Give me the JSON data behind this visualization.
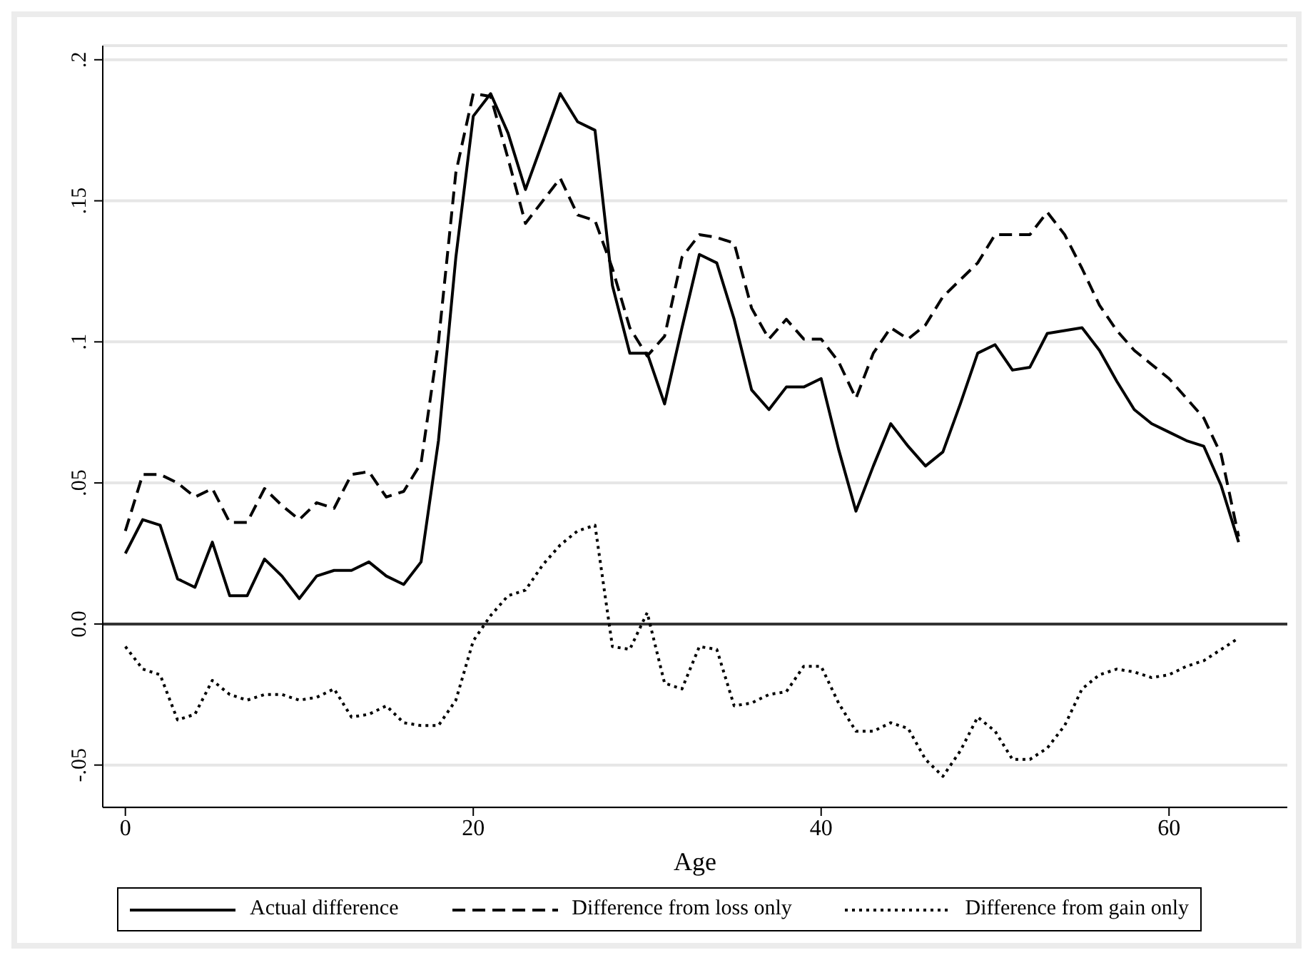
{
  "chart_data": {
    "type": "line",
    "xlabel": "Age",
    "x": [
      0,
      1,
      2,
      3,
      4,
      5,
      6,
      7,
      8,
      9,
      10,
      11,
      12,
      13,
      14,
      15,
      16,
      17,
      18,
      19,
      20,
      21,
      22,
      23,
      24,
      25,
      26,
      27,
      28,
      29,
      30,
      31,
      32,
      33,
      34,
      35,
      36,
      37,
      38,
      39,
      40,
      41,
      42,
      43,
      44,
      45,
      46,
      47,
      48,
      49,
      50,
      51,
      52,
      53,
      54,
      55,
      56,
      57,
      58,
      59,
      60,
      61,
      62,
      63,
      64
    ],
    "series": [
      {
        "name": "Actual difference",
        "color": "#000000",
        "line_style": "solid",
        "values": [
          0.025,
          0.037,
          0.035,
          0.016,
          0.013,
          0.029,
          0.01,
          0.01,
          0.023,
          0.017,
          0.009,
          0.017,
          0.019,
          0.019,
          0.022,
          0.017,
          0.014,
          0.022,
          0.065,
          0.13,
          0.18,
          0.188,
          0.174,
          0.154,
          0.171,
          0.188,
          0.178,
          0.175,
          0.12,
          0.096,
          0.096,
          0.078,
          0.105,
          0.131,
          0.128,
          0.108,
          0.083,
          0.076,
          0.084,
          0.084,
          0.087,
          0.062,
          0.04,
          0.056,
          0.071,
          0.063,
          0.056,
          0.061,
          0.078,
          0.096,
          0.099,
          0.09,
          0.091,
          0.103,
          0.104,
          0.105,
          0.097,
          0.086,
          0.076,
          0.071,
          0.068,
          0.065,
          0.063,
          0.049,
          0.029
        ]
      },
      {
        "name": "Difference from loss only",
        "color": "#000000",
        "line_style": "dashed",
        "values": [
          0.033,
          0.053,
          0.053,
          0.05,
          0.045,
          0.048,
          0.036,
          0.036,
          0.048,
          0.042,
          0.037,
          0.043,
          0.041,
          0.053,
          0.054,
          0.045,
          0.047,
          0.057,
          0.1,
          0.16,
          0.188,
          0.187,
          0.165,
          0.142,
          0.15,
          0.158,
          0.145,
          0.143,
          0.126,
          0.105,
          0.095,
          0.102,
          0.13,
          0.138,
          0.137,
          0.135,
          0.112,
          0.101,
          0.108,
          0.101,
          0.101,
          0.093,
          0.08,
          0.096,
          0.105,
          0.101,
          0.106,
          0.116,
          0.122,
          0.128,
          0.138,
          0.138,
          0.138,
          0.146,
          0.138,
          0.126,
          0.113,
          0.104,
          0.097,
          0.092,
          0.087,
          0.08,
          0.073,
          0.06,
          0.031
        ]
      },
      {
        "name": "Difference from gain only",
        "color": "#000000",
        "line_style": "dotted",
        "values": [
          -0.008,
          -0.016,
          -0.018,
          -0.034,
          -0.032,
          -0.02,
          -0.025,
          -0.027,
          -0.025,
          -0.025,
          -0.027,
          -0.026,
          -0.023,
          -0.033,
          -0.032,
          -0.029,
          -0.035,
          -0.036,
          -0.036,
          -0.027,
          -0.006,
          0.003,
          0.01,
          0.012,
          0.021,
          0.028,
          0.033,
          0.035,
          -0.008,
          -0.009,
          0.004,
          -0.021,
          -0.023,
          -0.008,
          -0.009,
          -0.029,
          -0.028,
          -0.025,
          -0.024,
          -0.015,
          -0.015,
          -0.028,
          -0.038,
          -0.038,
          -0.035,
          -0.037,
          -0.048,
          -0.054,
          -0.045,
          -0.033,
          -0.038,
          -0.048,
          -0.048,
          -0.044,
          -0.036,
          -0.023,
          -0.018,
          -0.016,
          -0.017,
          -0.019,
          -0.018,
          -0.015,
          -0.013,
          -0.009,
          -0.005
        ]
      }
    ],
    "xlim": [
      -1.3,
      66.8
    ],
    "xticks": [
      0,
      20,
      40,
      60
    ],
    "ylim": [
      -0.065,
      0.205
    ],
    "yticks": [
      {
        "value": -0.05,
        "label": "-.05"
      },
      {
        "value": 0,
        "label": "0.0"
      },
      {
        "value": 0.05,
        "label": ".05"
      },
      {
        "value": 0.1,
        "label": ".1"
      },
      {
        "value": 0.15,
        "label": ".15"
      },
      {
        "value": 0.2,
        "label": ".2"
      }
    ],
    "ref_lines": [
      {
        "axis": "y",
        "value": 0,
        "color": "#333333",
        "line_style": "solid"
      }
    ],
    "grid": "y",
    "legend": "bottom",
    "marker": "none"
  }
}
